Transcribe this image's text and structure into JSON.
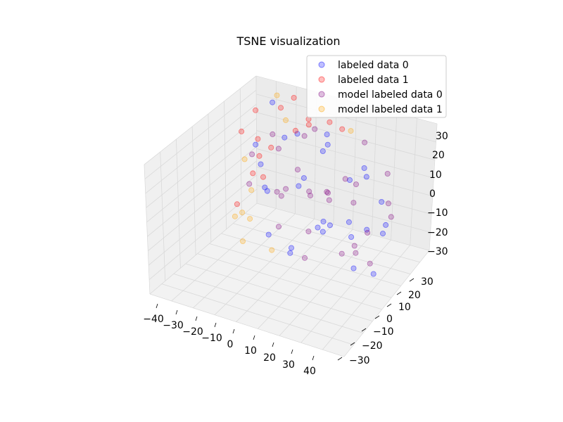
{
  "chart_data": {
    "type": "scatter",
    "projection": "3d",
    "title": "TSNE visualization",
    "xlabel": "",
    "ylabel": "",
    "zlabel": "",
    "xlim": [
      -45,
      45
    ],
    "ylim": [
      -35,
      35
    ],
    "zlim": [
      -33,
      37
    ],
    "x_ticks": [
      "−40",
      "−30",
      "−20",
      "−10",
      "0",
      "10",
      "20",
      "30",
      "40"
    ],
    "y_ticks": [
      "−30",
      "−20",
      "−10",
      "0",
      "10",
      "20",
      "30"
    ],
    "z_ticks": [
      "−30",
      "−20",
      "−10",
      "0",
      "10",
      "20",
      "30"
    ],
    "grid": true,
    "legend_position": "top-right",
    "point_alpha": 0.25,
    "series": [
      {
        "name": "labeled data 0",
        "color": "#0000ff",
        "points": [
          [
            -20,
            10,
            14
          ],
          [
            5,
            -12,
            -8
          ],
          [
            18,
            22,
            3
          ],
          [
            -8,
            -25,
            -18
          ],
          [
            30,
            5,
            12
          ],
          [
            -15,
            18,
            -22
          ],
          [
            10,
            -30,
            20
          ],
          [
            -28,
            -5,
            6
          ],
          [
            22,
            -18,
            -14
          ],
          [
            0,
            15,
            25
          ],
          [
            -35,
            12,
            -3
          ],
          [
            14,
            8,
            -25
          ],
          [
            -5,
            -10,
            18
          ],
          [
            26,
            -8,
            4
          ],
          [
            -22,
            -20,
            10
          ],
          [
            8,
            28,
            -12
          ],
          [
            33,
            -22,
            -6
          ],
          [
            -12,
            4,
            28
          ],
          [
            16,
            -4,
            -2
          ],
          [
            -30,
            25,
            15
          ],
          [
            4,
            -18,
            0
          ],
          [
            -18,
            -28,
            -10
          ],
          [
            28,
            15,
            -20
          ],
          [
            -2,
            24,
            8
          ],
          [
            12,
            -25,
            14
          ],
          [
            -26,
            0,
            -15
          ],
          [
            20,
            10,
            22
          ],
          [
            -10,
            -15,
            -26
          ],
          [
            36,
            -10,
            16
          ],
          [
            -6,
            30,
            -5
          ]
        ]
      },
      {
        "name": "labeled data 1",
        "color": "#ff0000",
        "points": [
          [
            -34,
            8,
            24
          ],
          [
            -25,
            22,
            18
          ],
          [
            -38,
            -12,
            -20
          ],
          [
            -30,
            0,
            5
          ],
          [
            -20,
            28,
            22
          ],
          [
            -10,
            18,
            25
          ],
          [
            -36,
            20,
            -8
          ],
          [
            -28,
            -20,
            15
          ],
          [
            -15,
            12,
            20
          ],
          [
            5,
            25,
            22
          ],
          [
            -32,
            15,
            -25
          ],
          [
            -22,
            -8,
            24
          ],
          [
            -40,
            4,
            10
          ],
          [
            0,
            20,
            28
          ],
          [
            -12,
            26,
            12
          ]
        ]
      },
      {
        "name": "model labeled data 0",
        "color": "#800080",
        "points": [
          [
            -18,
            -12,
            2
          ],
          [
            12,
            20,
            -16
          ],
          [
            -6,
            6,
            -10
          ],
          [
            24,
            -24,
            8
          ],
          [
            -24,
            14,
            0
          ],
          [
            6,
            -6,
            12
          ],
          [
            30,
            18,
            -2
          ],
          [
            -14,
            -24,
            -6
          ],
          [
            18,
            2,
            18
          ],
          [
            -2,
            -20,
            -22
          ],
          [
            -30,
            -14,
            20
          ],
          [
            10,
            12,
            6
          ],
          [
            26,
            -2,
            -24
          ],
          [
            -8,
            22,
            16
          ],
          [
            34,
            8,
            2
          ],
          [
            -20,
            4,
            -18
          ],
          [
            2,
            -28,
            6
          ],
          [
            16,
            26,
            20
          ],
          [
            -26,
            10,
            12
          ],
          [
            22,
            -14,
            -8
          ],
          [
            -4,
            -4,
            4
          ],
          [
            8,
            -16,
            24
          ],
          [
            -16,
            20,
            -14
          ],
          [
            28,
            24,
            10
          ],
          [
            -34,
            -4,
            -12
          ],
          [
            14,
            -10,
            -18
          ],
          [
            -10,
            10,
            22
          ],
          [
            20,
            16,
            -26
          ],
          [
            4,
            4,
            -4
          ],
          [
            -12,
            -18,
            14
          ]
        ]
      },
      {
        "name": "model labeled data 1",
        "color": "#ffa500",
        "points": [
          [
            -38,
            -16,
            -24
          ],
          [
            -36,
            -10,
            -26
          ],
          [
            -34,
            0,
            -20
          ],
          [
            -30,
            -18,
            -18
          ],
          [
            -22,
            20,
            14
          ],
          [
            -40,
            10,
            -14
          ],
          [
            -28,
            26,
            20
          ],
          [
            -18,
            -22,
            -26
          ],
          [
            8,
            30,
            18
          ],
          [
            -32,
            -24,
            -28
          ]
        ]
      }
    ]
  }
}
